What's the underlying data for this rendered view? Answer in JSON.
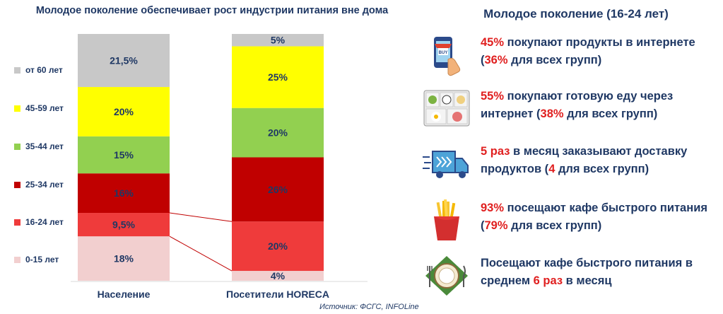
{
  "chart_data": {
    "type": "bar",
    "stacked": true,
    "percent": true,
    "title": "Молодое поколение обеспечивает рост индустрии питания вне дома",
    "categories": [
      "Население",
      "Посетители HORECA"
    ],
    "series": [
      {
        "name": "0-15 лет",
        "color": "#f2cfcf",
        "values": [
          18,
          4
        ],
        "labels": [
          "18%",
          "4%"
        ]
      },
      {
        "name": "16-24 лет",
        "color": "#ef3b3b",
        "values": [
          9.5,
          20
        ],
        "labels": [
          "9,5%",
          "20%"
        ]
      },
      {
        "name": "25-34 лет",
        "color": "#c00000",
        "values": [
          16,
          26
        ],
        "labels": [
          "16%",
          "26%"
        ]
      },
      {
        "name": "35-44 лет",
        "color": "#92d050",
        "values": [
          15,
          20
        ],
        "labels": [
          "15%",
          "20%"
        ]
      },
      {
        "name": "45-59 лет",
        "color": "#ffff00",
        "values": [
          20,
          25
        ],
        "labels": [
          "20%",
          "25%"
        ]
      },
      {
        "name": "от 60 лет",
        "color": "#c8c8c8",
        "values": [
          21.5,
          5
        ],
        "labels": [
          "21,5%",
          "5%"
        ]
      }
    ],
    "ylim": [
      0,
      100
    ],
    "grid": false,
    "legend": "left",
    "connector_series": "16-24 лет"
  },
  "source": "Источник: ФСГС, INFOLine",
  "panel": {
    "title": "Молодое поколение (16-24 лет)",
    "facts": [
      {
        "icon": "online-shopping-icon",
        "parts": [
          {
            "t": "45%",
            "h": true
          },
          {
            "t": " покупают продукты в интернете (",
            "h": false
          },
          {
            "t": "36%",
            "h": true
          },
          {
            "t": " для всех групп)",
            "h": false
          }
        ]
      },
      {
        "icon": "ready-meals-icon",
        "parts": [
          {
            "t": "55%",
            "h": true
          },
          {
            "t": " покупают готовую еду через интернет (",
            "h": false
          },
          {
            "t": "38%",
            "h": true
          },
          {
            "t": " для всех групп)",
            "h": false
          }
        ]
      },
      {
        "icon": "delivery-truck-icon",
        "parts": [
          {
            "t": "5 раз",
            "h": true
          },
          {
            "t": " в месяц заказывают доставку продуктов (",
            "h": false
          },
          {
            "t": "4",
            "h": true
          },
          {
            "t": " для всех групп)",
            "h": false
          }
        ]
      },
      {
        "icon": "french-fries-icon",
        "parts": [
          {
            "t": "93%",
            "h": true
          },
          {
            "t": " посещают кафе быстрого питания (",
            "h": false
          },
          {
            "t": "79%",
            "h": true
          },
          {
            "t": " для всех групп)",
            "h": false
          }
        ]
      },
      {
        "icon": "plate-cutlery-icon",
        "parts": [
          {
            "t": "Посещают кафе быстрого питания в среднем ",
            "h": false
          },
          {
            "t": "6 раз",
            "h": true
          },
          {
            "t": " в месяц",
            "h": false
          }
        ]
      }
    ]
  }
}
